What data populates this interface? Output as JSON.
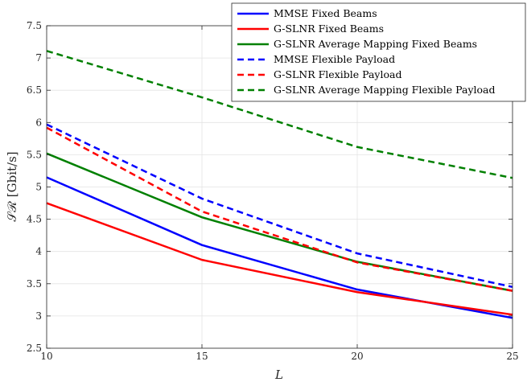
{
  "chart_data": {
    "type": "line",
    "xlabel": "L",
    "ylabel": "𝒮ℛ [Gbit/s]",
    "x": [
      10,
      15,
      20,
      25
    ],
    "xlim": [
      10,
      25
    ],
    "ylim": [
      2.5,
      7.5
    ],
    "xticks": [
      "10",
      "15",
      "20",
      "25"
    ],
    "yticks": [
      "2.5",
      "3",
      "3.5",
      "4",
      "4.5",
      "5",
      "5.5",
      "6",
      "6.5",
      "7",
      "7.5"
    ],
    "grid": true,
    "legend_position": "top-right",
    "series": [
      {
        "name": "MMSE Fixed Beams",
        "color": "#0000ff",
        "dash": "solid",
        "values": [
          5.15,
          4.1,
          3.41,
          2.97
        ]
      },
      {
        "name": "G-SLNR Fixed Beams",
        "color": "#ff0000",
        "dash": "solid",
        "values": [
          4.75,
          3.87,
          3.37,
          3.02
        ]
      },
      {
        "name": "G-SLNR Average Mapping Fixed Beams",
        "color": "#008000",
        "dash": "solid",
        "values": [
          5.52,
          4.53,
          3.84,
          3.39
        ]
      },
      {
        "name": "MMSE Flexible Payload",
        "color": "#0000ff",
        "dash": "dashed",
        "values": [
          5.97,
          4.82,
          3.97,
          3.45
        ]
      },
      {
        "name": "G-SLNR Flexible Payload",
        "color": "#ff0000",
        "dash": "dashed",
        "values": [
          5.92,
          4.62,
          3.83,
          3.39
        ]
      },
      {
        "name": "G-SLNR Average Mapping Flexible Payload",
        "color": "#008000",
        "dash": "dashed",
        "values": [
          7.11,
          6.39,
          5.62,
          5.14
        ]
      }
    ]
  }
}
